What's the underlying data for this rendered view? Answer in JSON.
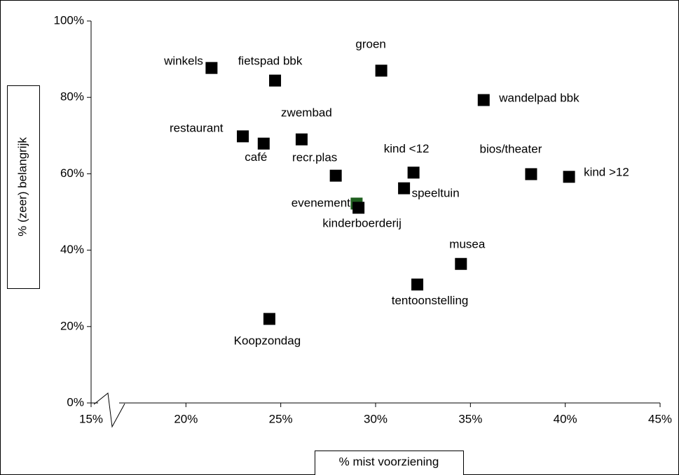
{
  "chart_data": {
    "type": "scatter",
    "xlabel": "% mist voorziening",
    "ylabel": "% (zeer) belangrijk",
    "labels": [
      "winkels",
      "fietspad bbk",
      "groen",
      "wandelpad bbk",
      "restaurant",
      "café",
      "zwembad",
      "recr.plas",
      "kind <12",
      "bios/theater",
      "kind >12",
      "speeltuin",
      "evenement",
      "kinderboerderij",
      "musea",
      "tentoonstelling",
      "Koopzondag"
    ],
    "x": [
      21.35,
      24.7,
      30.3,
      35.7,
      23.0,
      24.1,
      26.1,
      27.9,
      32.0,
      38.2,
      40.2,
      31.5,
      29.0,
      29.1,
      34.5,
      32.2,
      24.4
    ],
    "y": [
      87.7,
      84.4,
      87.0,
      79.3,
      69.8,
      67.9,
      69.0,
      59.5,
      60.3,
      59.9,
      59.2,
      56.2,
      52.2,
      51.1,
      36.4,
      31.0,
      22.0
    ],
    "colors": [
      "#000000",
      "#000000",
      "#000000",
      "#000000",
      "#000000",
      "#000000",
      "#000000",
      "#000000",
      "#000000",
      "#000000",
      "#000000",
      "#000000",
      "#1f5f1f",
      "#000000",
      "#000000",
      "#000000",
      "#000000"
    ],
    "xlim": [
      15,
      45
    ],
    "ylim": [
      0,
      100
    ],
    "xticks": [
      {
        "value": 15,
        "label": "15%"
      },
      {
        "value": 20,
        "label": "20%"
      },
      {
        "value": 25,
        "label": "25%"
      },
      {
        "value": 30,
        "label": "30%"
      },
      {
        "value": 35,
        "label": "35%"
      },
      {
        "value": 40,
        "label": "40%"
      },
      {
        "value": 45,
        "label": "45%"
      }
    ],
    "yticks": [
      {
        "value": 0,
        "label": "0%"
      },
      {
        "value": 20,
        "label": "20%"
      },
      {
        "value": 40,
        "label": "40%"
      },
      {
        "value": 60,
        "label": "60%"
      },
      {
        "value": 80,
        "label": "80%"
      },
      {
        "value": 100,
        "label": "100%"
      }
    ]
  }
}
